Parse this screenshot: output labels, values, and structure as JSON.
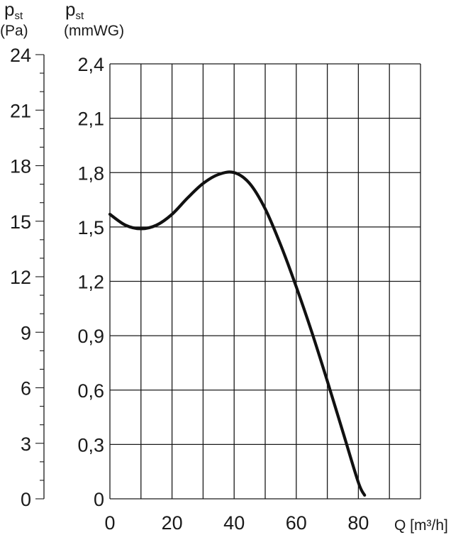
{
  "chart_data": {
    "type": "line",
    "title": "",
    "y_left": {
      "label": "p",
      "label_sub": "st",
      "unit": "(Pa)",
      "ticks": [
        "0",
        "3",
        "6",
        "9",
        "12",
        "15",
        "18",
        "21",
        "24"
      ],
      "range": [
        0,
        24
      ]
    },
    "y_right": {
      "label": "p",
      "label_sub": "st",
      "unit": "(mmWG)",
      "ticks": [
        "0",
        "0,3",
        "0,6",
        "0,9",
        "1,2",
        "1,5",
        "1,8",
        "2,1",
        "2,4"
      ],
      "range": [
        0,
        2.4
      ]
    },
    "x": {
      "label": "Q [m³/h]",
      "ticks": [
        "0",
        "20",
        "40",
        "60",
        "80"
      ],
      "range": [
        0,
        100
      ]
    },
    "grid": true,
    "series": [
      {
        "x": [
          0,
          5,
          10,
          15,
          20,
          25,
          30,
          35,
          40,
          45,
          50,
          55,
          60,
          65,
          70,
          75,
          80,
          82
        ],
        "y": [
          1.57,
          1.51,
          1.49,
          1.51,
          1.57,
          1.66,
          1.74,
          1.79,
          1.8,
          1.74,
          1.6,
          1.4,
          1.17,
          0.92,
          0.65,
          0.37,
          0.09,
          0.02
        ],
        "color": "#111111"
      }
    ]
  }
}
